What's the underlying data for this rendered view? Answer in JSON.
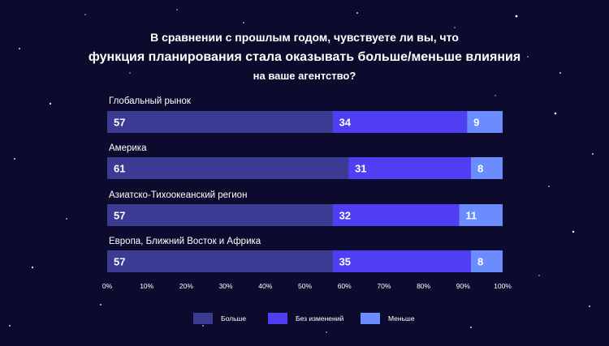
{
  "chart_data": {
    "type": "bar",
    "orientation": "horizontal-stacked",
    "title_lines": [
      "В сравнении с прошлым годом, чувствуете ли вы, что",
      "функция планирования стала оказывать больше/меньше влияния",
      "на ваше агентство?"
    ],
    "categories": [
      "Глобальный рынок",
      "Америка",
      "Азиатско-Тихоокеанский регион",
      "Европа, Ближний Восток и Африка"
    ],
    "series": [
      {
        "name": "Больше",
        "color": "#3c3b94",
        "values": [
          57,
          61,
          57,
          57
        ]
      },
      {
        "name": "Без изменений",
        "color": "#4f3ef2",
        "values": [
          34,
          31,
          32,
          35
        ]
      },
      {
        "name": "Меньше",
        "color": "#6b8cff",
        "values": [
          9,
          8,
          11,
          8
        ]
      }
    ],
    "xlim": [
      0,
      100
    ],
    "x_ticks": [
      "0%",
      "10%",
      "20%",
      "30%",
      "40%",
      "50%",
      "60%",
      "70%",
      "80%",
      "90%",
      "100%"
    ],
    "legend_position": "bottom",
    "grid": false
  }
}
